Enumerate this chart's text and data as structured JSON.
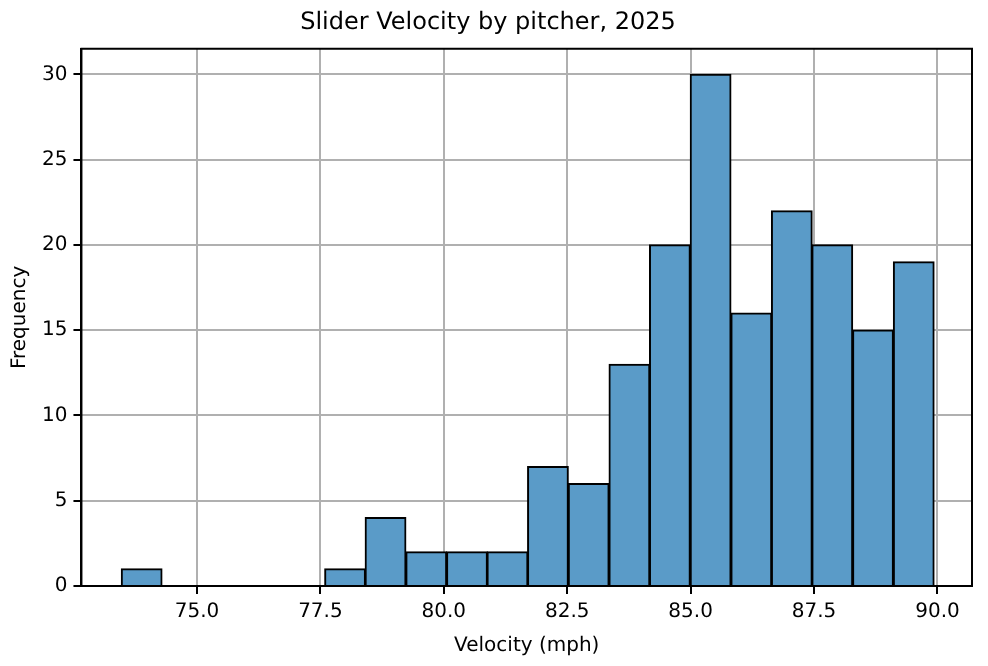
{
  "chart_data": {
    "type": "histogram",
    "title": "Slider Velocity by pitcher, 2025",
    "xlabel": "Velocity (mph)",
    "ylabel": "Frequency",
    "bins": [
      73.47,
      74.29,
      75.12,
      75.94,
      76.76,
      77.59,
      78.41,
      79.23,
      80.06,
      80.88,
      81.7,
      82.52,
      83.35,
      84.17,
      84.99,
      85.82,
      86.64,
      87.46,
      88.28,
      89.11,
      89.93
    ],
    "values": [
      1,
      0,
      0,
      0,
      0,
      1,
      4,
      2,
      2,
      2,
      7,
      6,
      13,
      20,
      30,
      16,
      22,
      20,
      15,
      19
    ],
    "color": "#5a9bc8",
    "xlim": [
      72.66,
      90.7
    ],
    "xticks": [
      {
        "value": 75,
        "label": "75.0"
      },
      {
        "value": 77.5,
        "label": "77.5"
      },
      {
        "value": 80,
        "label": "80.0"
      },
      {
        "value": 82.5,
        "label": "82.5"
      },
      {
        "value": 85,
        "label": "85.0"
      },
      {
        "value": 87.5,
        "label": "87.5"
      },
      {
        "value": 90,
        "label": "90.0"
      }
    ],
    "ylim": [
      0,
      31.5
    ],
    "yticks": [
      0,
      5,
      10,
      15,
      20,
      25,
      30
    ],
    "grid": true,
    "legend": false
  }
}
